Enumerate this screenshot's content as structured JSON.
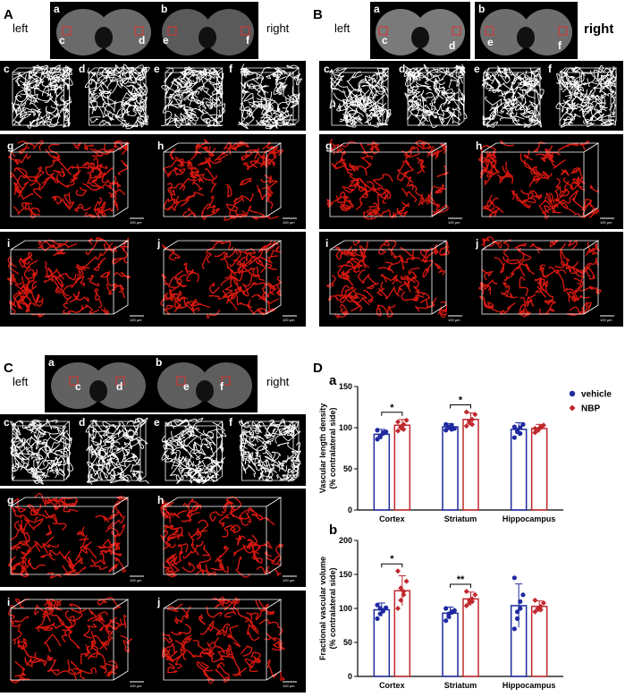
{
  "panels": {
    "A": {
      "letter": "A",
      "left": "left",
      "right": "right"
    },
    "B": {
      "letter": "B",
      "left": "left",
      "right": "right"
    },
    "C": {
      "letter": "C",
      "left": "left",
      "right": "right"
    },
    "D": {
      "letter": "D"
    }
  },
  "sub_labels": {
    "a": "a",
    "b": "b",
    "c": "c",
    "d": "d",
    "e": "e",
    "f": "f",
    "g": "g",
    "h": "h",
    "i": "i",
    "j": "j"
  },
  "scale_labels": {
    "um100": "100 μm",
    "um400": "400 μm"
  },
  "colors": {
    "vehicle": "#1f2aa0",
    "nbp": "#c0282d",
    "vessel_red": "#d4180f",
    "white": "#ffffff"
  },
  "chart_data": [
    {
      "type": "bar",
      "panel": "a",
      "categories": [
        "Cortex",
        "Striatum",
        "Hippocampus"
      ],
      "ylabel": "Vascular length density\n(% contralateral side)",
      "ylabel_lines": [
        "Vascular length density",
        "(% contralateral side)"
      ],
      "ylim": [
        0,
        150
      ],
      "yticks": [
        0,
        50,
        100,
        150
      ],
      "series": [
        {
          "name": "vehicle",
          "values": [
            92,
            101,
            98
          ],
          "err": [
            6,
            4,
            8
          ],
          "points": [
            [
              86,
              90,
              93,
              95,
              97,
              89,
              94
            ],
            [
              97,
              100,
              103,
              99,
              104,
              101,
              98
            ],
            [
              88,
              95,
              100,
              104,
              101,
              97,
              93
            ]
          ]
        },
        {
          "name": "NBP",
          "values": [
            103,
            110,
            99
          ],
          "err": [
            7,
            8,
            5
          ],
          "points": [
            [
              96,
              100,
              104,
              109,
              107,
              101,
              98
            ],
            [
              102,
              106,
              110,
              116,
              119,
              108,
              104
            ],
            [
              94,
              98,
              101,
              103,
              99,
              97,
              100
            ]
          ]
        }
      ],
      "significance": [
        {
          "category": "Cortex",
          "text": "*"
        },
        {
          "category": "Striatum",
          "text": "*"
        }
      ],
      "legend": [
        "vehicle",
        "NBP"
      ],
      "legend_position": "right"
    },
    {
      "type": "bar",
      "panel": "b",
      "categories": [
        "Cortex",
        "Striatum",
        "Hippocampus"
      ],
      "ylabel_lines": [
        "Fractional vascular volume",
        "(% contralateral side)"
      ],
      "ylim": [
        0,
        200
      ],
      "yticks": [
        0,
        50,
        100,
        150,
        200
      ],
      "series": [
        {
          "name": "vehicle",
          "values": [
            98,
            93,
            104
          ],
          "err": [
            10,
            9,
            32
          ],
          "points": [
            [
              85,
              92,
              97,
              101,
              105,
              100,
              96
            ],
            [
              82,
              88,
              94,
              97,
              100,
              92,
              95
            ],
            [
              70,
              85,
              100,
              120,
              145,
              95,
              110
            ]
          ]
        },
        {
          "name": "NBP",
          "values": [
            126,
            114,
            103
          ],
          "err": [
            22,
            10,
            8
          ],
          "points": [
            [
              100,
              112,
              125,
              140,
              155,
              130,
              120
            ],
            [
              104,
              108,
              114,
              120,
              125,
              112,
              110
            ],
            [
              95,
              99,
              103,
              108,
              112,
              100,
              98
            ]
          ]
        }
      ],
      "significance": [
        {
          "category": "Cortex",
          "text": "*"
        },
        {
          "category": "Striatum",
          "text": "**"
        }
      ]
    }
  ]
}
